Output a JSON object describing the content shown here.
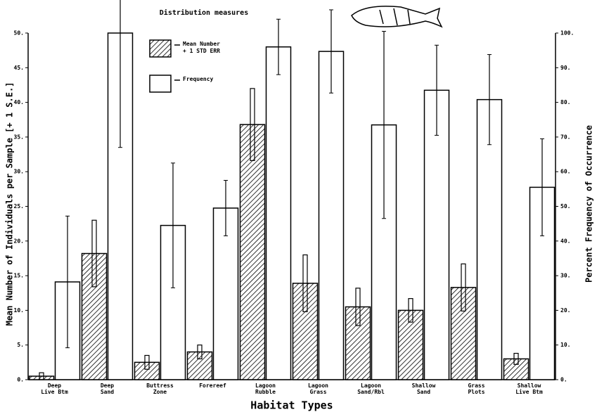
{
  "chart_data": {
    "type": "bar",
    "title": "Distribution measures",
    "x_label": "Habitat Types",
    "y_label": "Mean Number of Individuals per Sample [+ 1 S.E.]",
    "y2_label": "Percent Frequency of Occurrence",
    "categories": [
      "Deep\nLive Btm",
      "Deep\nSand",
      "Buttress\nZone",
      "Forereef",
      "Lagoon\nRubble",
      "Lagoon\nGrass",
      "Lagoon\nSand/Rbl",
      "Shallow\nSand",
      "Grass\nPlots",
      "Shallow\nLive Btm"
    ],
    "series": [
      {
        "name": "Mean Number\n+ 1 STD ERR",
        "color": "#000000",
        "axis": "y",
        "values": [
          0.5,
          18.2,
          2.5,
          4,
          36.8,
          13.9,
          10.5,
          10,
          13.3,
          3
        ],
        "errors": [
          0.5,
          4.8,
          1,
          1,
          5.2,
          4.1,
          2.7,
          1.7,
          3.4,
          0.8
        ]
      },
      {
        "name": "Frequency",
        "color": "#ffffff",
        "axis": "y2",
        "values": [
          28.2,
          100,
          44.5,
          49.5,
          96,
          94.7,
          73.5,
          83.5,
          80.8,
          55.5
        ],
        "errors": [
          19,
          33,
          18,
          8,
          8,
          12,
          27,
          13,
          13,
          14
        ]
      }
    ],
    "ylim": [
      0,
      50
    ],
    "yticks": [
      {
        "value": 0,
        "label": "0."
      },
      {
        "value": 5,
        "label": "5."
      },
      {
        "value": 10,
        "label": "10."
      },
      {
        "value": 15,
        "label": "15."
      },
      {
        "value": 20,
        "label": "20."
      },
      {
        "value": 25,
        "label": "25."
      },
      {
        "value": 30,
        "label": "30."
      },
      {
        "value": 35,
        "label": "35."
      },
      {
        "value": 40,
        "label": "40."
      },
      {
        "value": 45,
        "label": "45."
      },
      {
        "value": 50,
        "label": "50."
      }
    ],
    "y2lim": [
      0,
      100
    ],
    "y2ticks": [
      {
        "value": 0,
        "label": "0."
      },
      {
        "value": 10,
        "label": "10."
      },
      {
        "value": 20,
        "label": "20."
      },
      {
        "value": 30,
        "label": "30."
      },
      {
        "value": 40,
        "label": "40."
      },
      {
        "value": 50,
        "label": "50."
      },
      {
        "value": 60,
        "label": "60."
      },
      {
        "value": 70,
        "label": "70."
      },
      {
        "value": 80,
        "label": "80."
      },
      {
        "value": 90,
        "label": "90."
      },
      {
        "value": 100,
        "label": "100."
      }
    ],
    "grid": false
  }
}
